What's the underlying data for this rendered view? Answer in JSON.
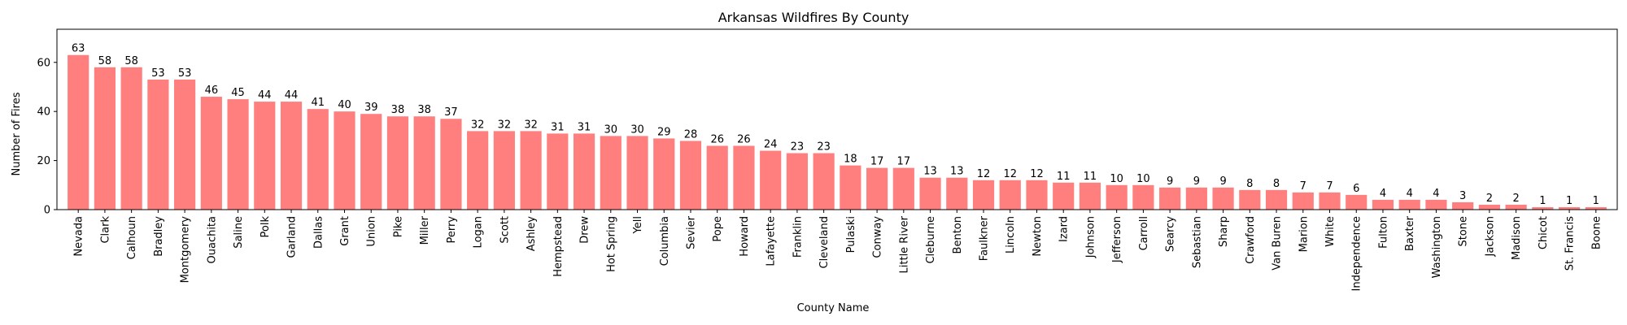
{
  "chart_data": {
    "type": "bar",
    "title": "Arkansas Wildfires By County",
    "xlabel": "County Name",
    "ylabel": "Number of Fires",
    "ylim": [
      0,
      73.5
    ],
    "yticks": [
      0,
      20,
      40,
      60
    ],
    "grid": false,
    "bar_color": "#ff7f7f",
    "categories": [
      "Nevada",
      "Clark",
      "Calhoun",
      "Bradley",
      "Montgomery",
      "Ouachita",
      "Saline",
      "Polk",
      "Garland",
      "Dallas",
      "Grant",
      "Union",
      "Pike",
      "Miller",
      "Perry",
      "Logan",
      "Scott",
      "Ashley",
      "Hempstead",
      "Drew",
      "Hot Spring",
      "Yell",
      "Columbia",
      "Sevier",
      "Pope",
      "Howard",
      "Lafayette",
      "Franklin",
      "Cleveland",
      "Pulaski",
      "Conway",
      "Little River",
      "Cleburne",
      "Benton",
      "Faulkner",
      "Lincoln",
      "Newton",
      "Izard",
      "Johnson",
      "Jefferson",
      "Carroll",
      "Searcy",
      "Sebastian",
      "Sharp",
      "Crawford",
      "Van Buren",
      "Marion",
      "White",
      "Independence",
      "Fulton",
      "Baxter",
      "Washington",
      "Stone",
      "Jackson",
      "Madison",
      "Chicot",
      "St. Francis",
      "Boone"
    ],
    "values": [
      63,
      58,
      58,
      53,
      53,
      46,
      45,
      44,
      44,
      41,
      40,
      39,
      38,
      38,
      37,
      32,
      32,
      32,
      31,
      31,
      30,
      30,
      29,
      28,
      26,
      26,
      24,
      23,
      23,
      18,
      17,
      17,
      13,
      13,
      12,
      12,
      12,
      11,
      11,
      10,
      10,
      9,
      9,
      9,
      8,
      8,
      7,
      7,
      6,
      4,
      4,
      4,
      3,
      2,
      2,
      1,
      1,
      1
    ]
  }
}
